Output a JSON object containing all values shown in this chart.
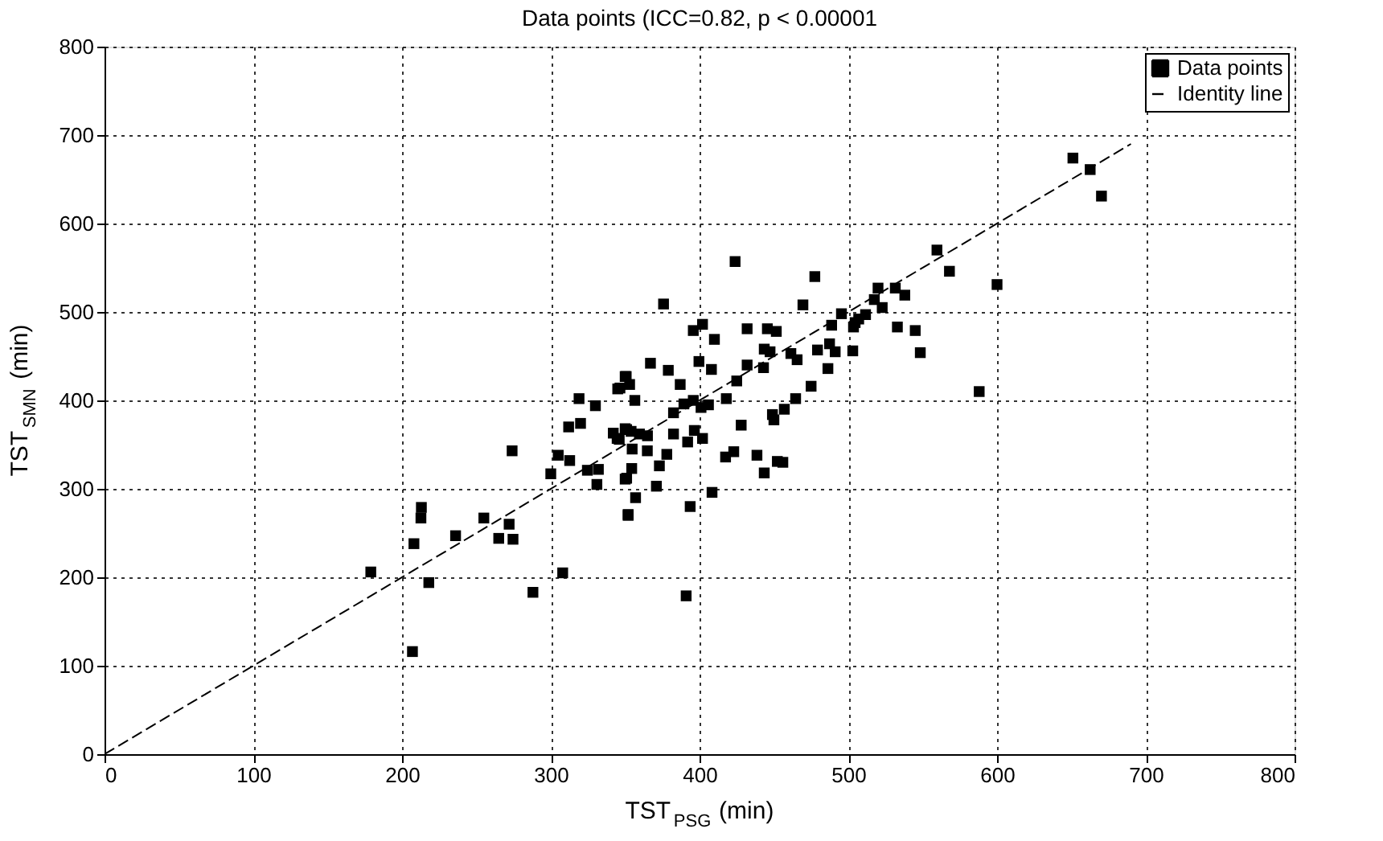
{
  "chart_data": {
    "type": "scatter",
    "title": "Data points (ICC=0.82, p < 0.00001",
    "xlabel": "TST$_{PSG}$ (min)",
    "ylabel": "TST$_{SMN}$ (min)",
    "xlim": [
      0,
      800
    ],
    "ylim": [
      0,
      800
    ],
    "xticks": [
      0,
      100,
      200,
      300,
      400,
      500,
      600,
      700,
      800
    ],
    "yticks": [
      0,
      100,
      200,
      300,
      400,
      500,
      600,
      700,
      800
    ],
    "grid": true,
    "legend": "top right",
    "series": [
      {
        "name": "Data points",
        "marker": "square",
        "color": "#000000",
        "x": [
          179,
          213,
          212.7,
          208,
          218,
          207,
          236,
          255,
          265,
          272,
          274.6,
          274,
          288,
          308,
          300,
          305,
          312.7,
          312,
          319,
          320,
          324.6,
          332,
          331,
          330,
          342,
          346,
          346.5,
          350.7,
          351,
          351,
          352,
          651,
          662.6,
          670.2,
          559.6,
          568,
          600,
          423.9,
          477.5,
          375.8,
          469.5,
          520,
          531.6,
          538,
          517.5,
          522.8,
          511.6,
          507,
          495.4,
          488.8,
          504.6,
          503.5,
          533,
          545,
          548.4,
          588,
          395.8,
          402,
          410,
          432,
          445.6,
          451.6,
          443.5,
          447.4,
          461.4,
          465.6,
          479.3,
          487.4,
          491.2,
          503,
          486.3,
          475,
          432,
          443,
          425,
          418,
          399.6,
          408,
          367,
          379,
          387,
          345,
          350,
          353,
          356.5,
          382.5,
          389.5,
          395.8,
          401,
          406,
          428,
          449,
          450,
          457,
          464.6,
          344.6,
          350,
          354,
          359.6,
          365,
          354.7,
          364.9,
          382.5,
          392,
          396.5,
          402,
          378,
          373,
          354.4,
          350,
          371,
          357,
          352,
          393.7,
          408.4,
          417.5,
          423,
          438.6,
          443.5,
          452.3,
          456,
          391
        ],
        "values": [
          206,
          279,
          267,
          238,
          194,
          116,
          247,
          267,
          244,
          260,
          243,
          343,
          183,
          205,
          317,
          338,
          332,
          370,
          402,
          374,
          321,
          322,
          305,
          394,
          363,
          356,
          414,
          427,
          367,
          312,
          271,
          674,
          661,
          631,
          570,
          546,
          531,
          557,
          540,
          509,
          508,
          527,
          527,
          519,
          514,
          505,
          497,
          492,
          498,
          485,
          488,
          483,
          483,
          479,
          454,
          410,
          479,
          486,
          469,
          481,
          481,
          478,
          458,
          455,
          453,
          446,
          457,
          464,
          455,
          456,
          436,
          416,
          440,
          437,
          422,
          402,
          444,
          435,
          442,
          434,
          418,
          413,
          427,
          418,
          400,
          386,
          396,
          400,
          392,
          395,
          372,
          384,
          378,
          390,
          402,
          357,
          368,
          365,
          362,
          360,
          345,
          343,
          362,
          353,
          366,
          357,
          339,
          326,
          323,
          311,
          303,
          290,
          270,
          280,
          296,
          336,
          342,
          338,
          318,
          331,
          330,
          179
        ]
      },
      {
        "name": "Identity line",
        "type": "line",
        "marker": "none",
        "line_style": "dashed",
        "color": "#000000",
        "x": [
          0,
          690
        ],
        "values": [
          0,
          690
        ]
      }
    ]
  }
}
